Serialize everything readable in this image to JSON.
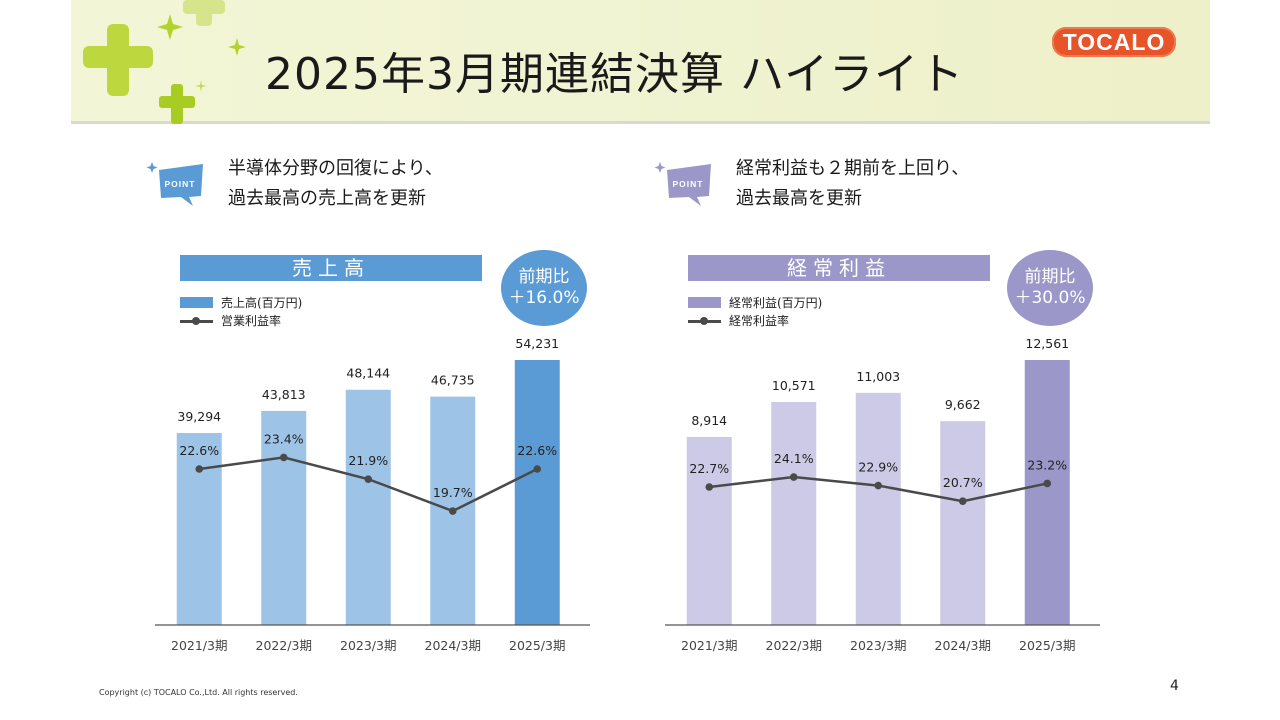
{
  "slide": {
    "title": "2025年3月期連結決算 ハイライト",
    "logo_text": "TOCALO",
    "copyright": "Copyright (c) TOCALO Co.,Ltd. All rights reserved.",
    "page_number": "4"
  },
  "left_panel": {
    "point_badge": "POINT",
    "point_line1": "半導体分野の回復により、",
    "point_line2": "過去最高の売上高を更新",
    "header": "売上高",
    "growth_label": "前期比",
    "growth_value": "＋16.0%",
    "legend_bar": "売上高(百万円)",
    "legend_line": "営業利益率"
  },
  "right_panel": {
    "point_badge": "POINT",
    "point_line1": "経常利益も２期前を上回り、",
    "point_line2": "過去最高を更新",
    "header": "経常利益",
    "growth_label": "前期比",
    "growth_value": "＋30.0%",
    "legend_bar": "経常利益(百万円)",
    "legend_line": "経常利益率"
  },
  "colors": {
    "sales_bar": "#9dc3e6",
    "sales_bar_highlight": "#5b9bd5",
    "sales_header": "#5b9bd5",
    "profit_bar": "#cccae6",
    "profit_bar_highlight": "#9b97c9",
    "profit_header": "#9b97c9",
    "line": "#4a4a4a",
    "logo": "#e8542a"
  },
  "chart_data": [
    {
      "type": "bar",
      "categories": [
        "2021/3期",
        "2022/3期",
        "2023/3期",
        "2024/3期",
        "2025/3期"
      ],
      "series": [
        {
          "name": "売上高(百万円)",
          "type": "bar",
          "values": [
            39294,
            43813,
            48144,
            46735,
            54231
          ],
          "labels": [
            "39,294",
            "43,813",
            "48,144",
            "46,735",
            "54,231"
          ]
        },
        {
          "name": "営業利益率",
          "type": "line",
          "values": [
            22.6,
            23.4,
            21.9,
            19.7,
            22.6
          ],
          "labels": [
            "22.6%",
            "23.4%",
            "21.9%",
            "19.7%",
            "22.6%"
          ]
        }
      ],
      "highlight_index": 4
    },
    {
      "type": "bar",
      "categories": [
        "2021/3期",
        "2022/3期",
        "2023/3期",
        "2024/3期",
        "2025/3期"
      ],
      "series": [
        {
          "name": "経常利益(百万円)",
          "type": "bar",
          "values": [
            8914,
            10571,
            11003,
            9662,
            12561
          ],
          "labels": [
            "8,914",
            "10,571",
            "11,003",
            "9,662",
            "12,561"
          ]
        },
        {
          "name": "経常利益率",
          "type": "line",
          "values": [
            22.7,
            24.1,
            22.9,
            20.7,
            23.2
          ],
          "labels": [
            "22.7%",
            "24.1%",
            "22.9%",
            "20.7%",
            "23.2%"
          ]
        }
      ],
      "highlight_index": 4
    }
  ]
}
